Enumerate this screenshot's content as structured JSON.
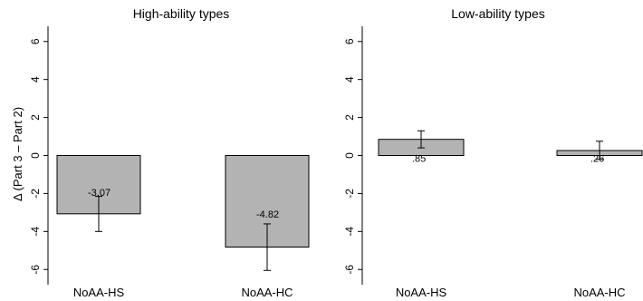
{
  "chart_data": [
    {
      "type": "bar",
      "title": "High-ability types",
      "ylabel": "Δ (Part 3 – Part 2)",
      "categories": [
        "NoAA-HS",
        "NoAA-HC"
      ],
      "values": [
        -3.07,
        -4.82
      ],
      "value_labels": [
        "-3.07",
        "-4.82"
      ],
      "ci_low": [
        -4.0,
        -6.05
      ],
      "ci_high": [
        -2.15,
        -3.6
      ],
      "ylim": [
        -6.8,
        6.8
      ],
      "yticks": [
        -6,
        -4,
        -2,
        0,
        2,
        4,
        6
      ],
      "ytick_labels": [
        "-6",
        "-4",
        "-2",
        "0",
        "2",
        "4",
        "6"
      ],
      "bar_color": "#b3b3b3",
      "grid": false
    },
    {
      "type": "bar",
      "title": "Low-ability types",
      "ylabel": "",
      "categories": [
        "NoAA-HS",
        "NoAA-HC"
      ],
      "values": [
        0.85,
        0.26
      ],
      "value_labels": [
        ".85",
        ".26"
      ],
      "ci_low": [
        0.4,
        -0.2
      ],
      "ci_high": [
        1.3,
        0.75
      ],
      "ylim": [
        -6.8,
        6.8
      ],
      "yticks": [
        -6,
        -4,
        -2,
        0,
        2,
        4,
        6
      ],
      "ytick_labels": [
        "-6",
        "-4",
        "-2",
        "0",
        "2",
        "4",
        "6"
      ],
      "bar_color": "#b3b3b3",
      "grid": false
    }
  ]
}
